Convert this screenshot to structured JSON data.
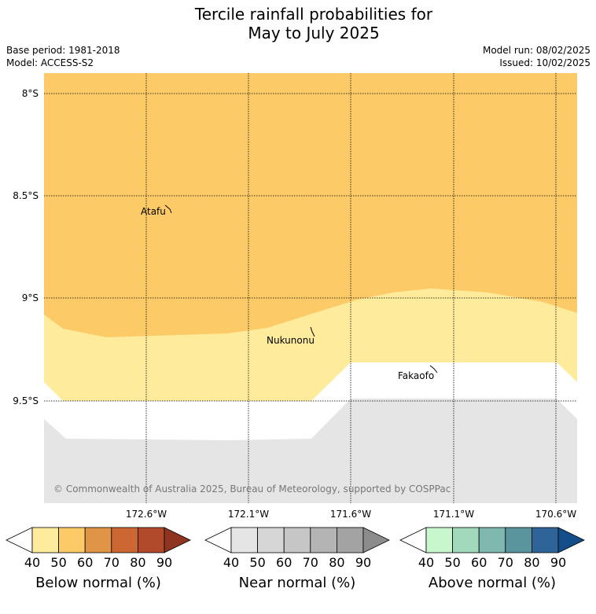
{
  "header": {
    "title_line1": "Tercile rainfall probabilities for",
    "title_line2": "May to July 2025",
    "base_period": "Base period: 1981-2018",
    "model": "Model: ACCESS-S2",
    "model_run": "Model run: 08/02/2025",
    "issued": "Issued: 10/02/2025"
  },
  "map": {
    "lat_labels": [
      "8°S",
      "8.5°S",
      "9°S",
      "9.5°S"
    ],
    "lon_labels": [
      "172.6°W",
      "172.1°W",
      "171.6°W",
      "171.1°W",
      "170.6°W"
    ],
    "places": [
      "Atafu",
      "Nukunonu",
      "Fakaofo"
    ],
    "copyright": "© Commonwealth of Australia 2025, Bureau of Meteorology, supported by COSPPac",
    "colors": {
      "below_50_60": "#fdca68",
      "below_40_50": "#feeb9c",
      "near_40_50": "#e5e5e5",
      "no_dominant": "#ffffff"
    }
  },
  "legends": [
    {
      "title": "Below normal (%)",
      "ticks": [
        "40",
        "50",
        "60",
        "70",
        "80",
        "90"
      ],
      "colors": [
        "#ffffff",
        "#feeb9c",
        "#fdca68",
        "#e09546",
        "#cc6633",
        "#b04a2a",
        "#8f3420"
      ]
    },
    {
      "title": "Near normal (%)",
      "ticks": [
        "40",
        "50",
        "60",
        "70",
        "80",
        "90"
      ],
      "colors": [
        "#ffffff",
        "#e5e5e5",
        "#d6d6d6",
        "#c6c6c6",
        "#b4b4b4",
        "#a3a3a3",
        "#8c8c8c"
      ]
    },
    {
      "title": "Above normal (%)",
      "ticks": [
        "40",
        "50",
        "60",
        "70",
        "80",
        "90"
      ],
      "colors": [
        "#ffffff",
        "#c9f7cd",
        "#a2d8bb",
        "#7fb8ae",
        "#5a949d",
        "#2e6497",
        "#134d8a"
      ]
    }
  ]
}
